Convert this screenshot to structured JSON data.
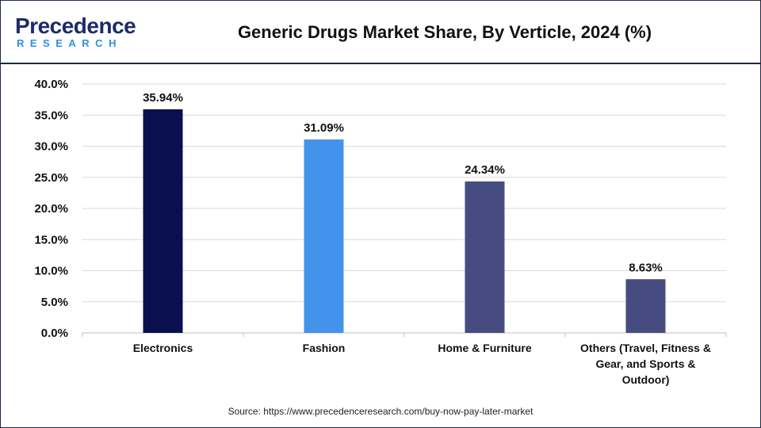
{
  "logo": {
    "name_top": "Precedence",
    "name_bottom": "RESEARCH"
  },
  "title": "Generic Drugs Market Share, By Verticle, 2024 (%)",
  "source": "Source: https://www.precedenceresearch.com/buy-now-pay-later-market",
  "colors": {
    "border": "#1f2a4a",
    "grid": "#d9d9d9",
    "axis": "#bfbfbf"
  },
  "chart_data": {
    "type": "bar",
    "title": "Generic Drugs Market Share, By Verticle, 2024 (%)",
    "categories": [
      [
        "Electronics"
      ],
      [
        "Fashion"
      ],
      [
        "Home & Furniture"
      ],
      [
        "Others (Travel, Fitness &",
        "Gear, and Sports &",
        "Outdoor)"
      ]
    ],
    "values": [
      35.94,
      31.09,
      24.34,
      8.63
    ],
    "value_labels": [
      "35.94%",
      "31.09%",
      "24.34%",
      "8.63%"
    ],
    "bar_colors": [
      "#0a0f4f",
      "#4393ec",
      "#474c80",
      "#474c80"
    ],
    "ylim": [
      0,
      40
    ],
    "yticks": [
      "0.0%",
      "5.0%",
      "10.0%",
      "15.0%",
      "20.0%",
      "25.0%",
      "30.0%",
      "35.0%",
      "40.0%"
    ],
    "ytick_values": [
      0,
      5,
      10,
      15,
      20,
      25,
      30,
      35,
      40
    ],
    "grid": true,
    "legend": "none"
  }
}
